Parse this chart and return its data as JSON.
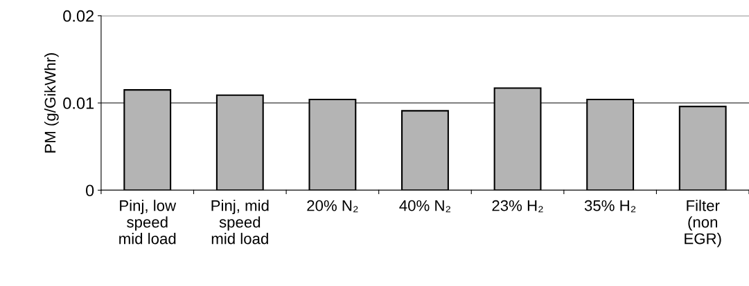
{
  "chart_data": {
    "type": "bar",
    "ylabel": "PM (g/GikWhr)",
    "categories": [
      "Pinj, low\nspeed\nmid load",
      "Pinj, mid\nspeed\nmid load",
      "20% N₂",
      "40% N₂",
      "23% H₂",
      "35% H₂",
      "Filter\n(non\nEGR)"
    ],
    "values": [
      0.0115,
      0.0109,
      0.0104,
      0.0091,
      0.0117,
      0.0104,
      0.0096
    ],
    "color": "#b4b4b4",
    "ylim": [
      0,
      0.02
    ],
    "yticks": [
      0,
      0.01,
      0.02
    ],
    "grid": "y",
    "legend": false
  }
}
